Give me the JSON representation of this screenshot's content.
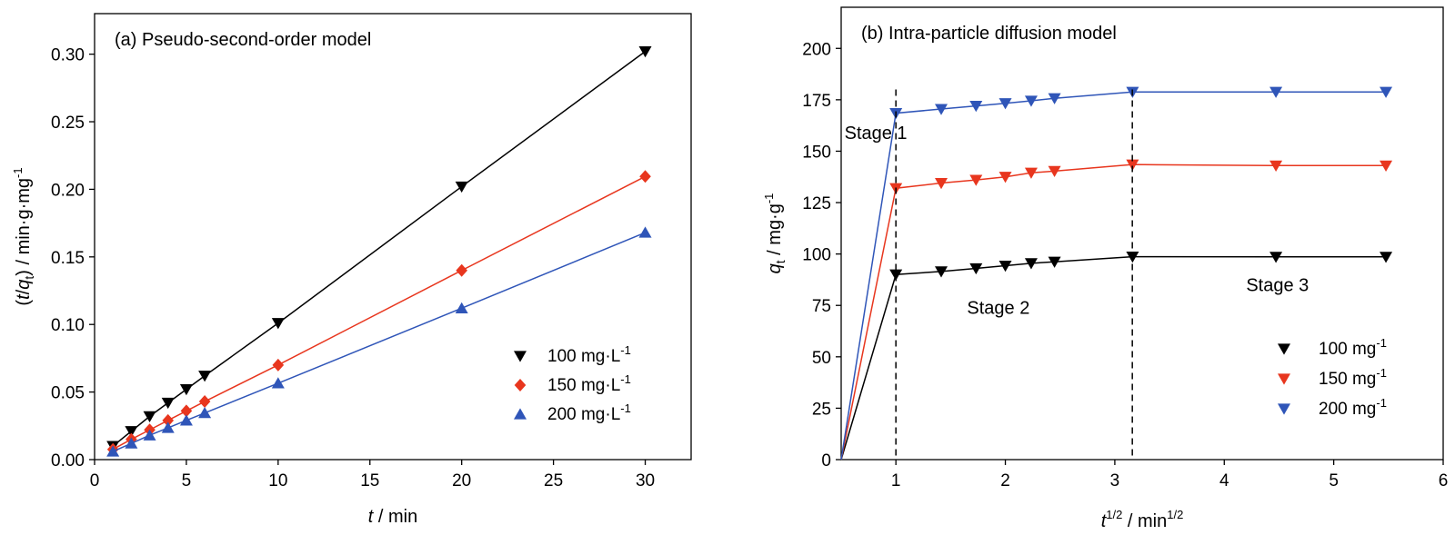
{
  "chart_data": [
    {
      "type": "line",
      "title": "(a)  Pseudo-second-order model",
      "xlabel_italic": "t",
      "xlabel_rest": " / min",
      "ylabel_parts": [
        "(",
        "t",
        "/",
        "q",
        "t",
        ") / min·g·mg",
        "-1"
      ],
      "xlim": [
        0,
        32.5
      ],
      "ylim": [
        0,
        0.33
      ],
      "xticks": [
        0,
        5,
        10,
        15,
        20,
        25,
        30
      ],
      "yticks": [
        0.0,
        0.05,
        0.1,
        0.15,
        0.2,
        0.25,
        0.3
      ],
      "xtick_labels": [
        "0",
        "5",
        "10",
        "15",
        "20",
        "25",
        "30"
      ],
      "ytick_labels": [
        "0.00",
        "0.05",
        "0.10",
        "0.15",
        "0.20",
        "0.25",
        "0.30"
      ],
      "legend_position": "bottom-right",
      "series": [
        {
          "name": "100 mg·L",
          "name_sup": "-1",
          "color": "#000000",
          "marker": "triangle-down",
          "x": [
            1,
            2,
            3,
            4,
            5,
            6,
            10,
            20,
            30
          ],
          "y": [
            0.01,
            0.021,
            0.032,
            0.042,
            0.052,
            0.062,
            0.101,
            0.202,
            0.302
          ]
        },
        {
          "name": "150 mg·L",
          "name_sup": "-1",
          "color": "#e8361e",
          "marker": "diamond",
          "x": [
            1,
            2,
            3,
            4,
            5,
            6,
            10,
            20,
            30
          ],
          "y": [
            0.0076,
            0.015,
            0.022,
            0.029,
            0.036,
            0.043,
            0.07,
            0.14,
            0.2095
          ]
        },
        {
          "name": "200 mg·L",
          "name_sup": "-1",
          "color": "#2f55b8",
          "marker": "triangle-up",
          "x": [
            1,
            2,
            3,
            4,
            5,
            6,
            10,
            20,
            30
          ],
          "y": [
            0.006,
            0.012,
            0.018,
            0.0235,
            0.029,
            0.0345,
            0.0565,
            0.112,
            0.168
          ]
        }
      ]
    },
    {
      "type": "line",
      "title": "(b)  Intra-particle diffusion model",
      "xlabel_parts": [
        "t",
        "1/2",
        " / min",
        "1/2"
      ],
      "ylabel_parts": [
        "q",
        "t",
        " / mg·g",
        "-1"
      ],
      "xlim": [
        0.5,
        6
      ],
      "ylim": [
        0,
        220
      ],
      "xticks": [
        1,
        2,
        3,
        4,
        5,
        6
      ],
      "yticks": [
        0,
        25,
        50,
        75,
        100,
        125,
        150,
        175,
        200
      ],
      "xtick_labels": [
        "1",
        "2",
        "3",
        "4",
        "5",
        "6"
      ],
      "ytick_labels": [
        "0",
        "25",
        "50",
        "75",
        "100",
        "125",
        "150",
        "175",
        "200"
      ],
      "legend_position": "bottom-right",
      "stage_boundaries": [
        1.0,
        3.16
      ],
      "annotations": [
        {
          "text": "Stage 1",
          "x": 0.53,
          "y": 156
        },
        {
          "text": "Stage 2",
          "x": 1.65,
          "y": 71
        },
        {
          "text": "Stage 3",
          "x": 4.2,
          "y": 82
        }
      ],
      "series": [
        {
          "name": "100 mg",
          "name_sup": "-1",
          "color": "#000000",
          "marker": "triangle-down",
          "x": [
            1.0,
            1.414,
            1.732,
            2.0,
            2.236,
            2.449,
            3.162,
            4.472,
            5.477
          ],
          "y": [
            90,
            91.5,
            93,
            94.3,
            95.5,
            96.2,
            98.7,
            98.6,
            98.6
          ],
          "origin": [
            0.5,
            0
          ]
        },
        {
          "name": "150 mg",
          "name_sup": "-1",
          "color": "#e8361e",
          "marker": "triangle-down",
          "x": [
            1.0,
            1.414,
            1.732,
            2.0,
            2.236,
            2.449,
            3.162,
            4.472,
            5.477
          ],
          "y": [
            132,
            134.5,
            136,
            137.5,
            139.5,
            140.3,
            143.5,
            143,
            143
          ],
          "origin": [
            0.5,
            0
          ]
        },
        {
          "name": "200 mg",
          "name_sup": "-1",
          "color": "#2f55b8",
          "marker": "triangle-down",
          "x": [
            1.0,
            1.414,
            1.732,
            2.0,
            2.236,
            2.449,
            3.162,
            4.472,
            5.477
          ],
          "y": [
            168.5,
            170.5,
            172,
            173.3,
            174.5,
            175.7,
            178.8,
            178.8,
            178.8
          ],
          "origin": [
            0.5,
            0
          ]
        }
      ]
    }
  ]
}
